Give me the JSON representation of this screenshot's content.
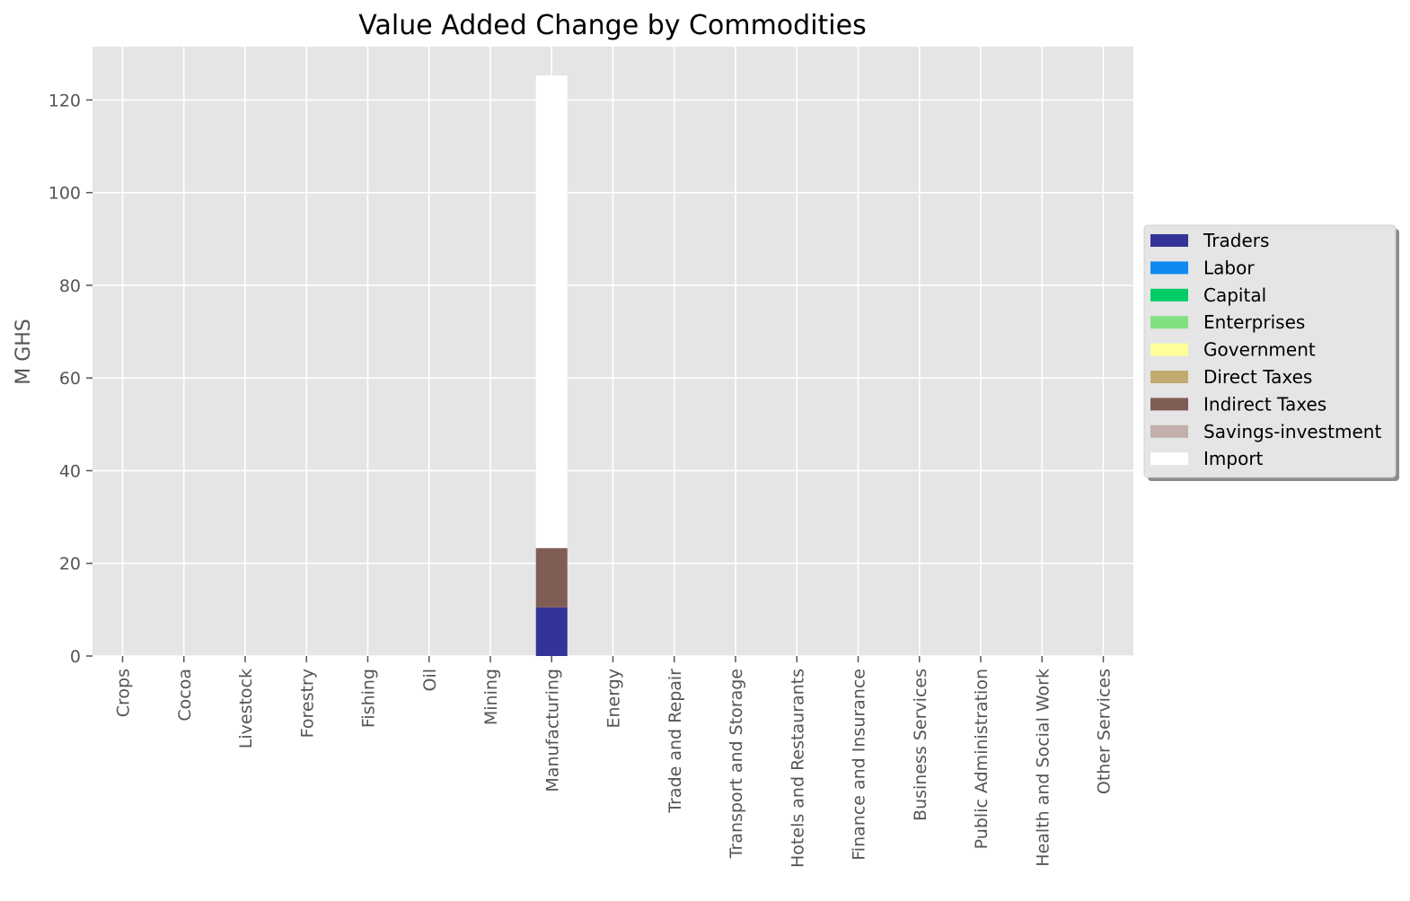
{
  "chart_data": {
    "type": "bar",
    "stacked": true,
    "title": "Value Added Change by Commodities",
    "xlabel": "",
    "ylabel": "M GHS",
    "ylim": [
      0,
      131.5
    ],
    "yticks": [
      0,
      20,
      40,
      60,
      80,
      100,
      120
    ],
    "grid": true,
    "legend_position": "center-right",
    "categories": [
      "Crops",
      "Cocoa",
      "Livestock",
      "Forestry",
      "Fishing",
      "Oil",
      "Mining",
      "Manufacturing",
      "Energy",
      "Trade and Repair",
      "Transport and Storage",
      "Hotels and Restaurants",
      "Finance and Insurance",
      "Business Services",
      "Public Administration",
      "Health and Social Work",
      "Other Services"
    ],
    "series": [
      {
        "name": "Traders",
        "color": "#333399",
        "values": [
          0,
          0,
          0,
          0,
          0,
          0,
          0,
          10.5,
          0,
          0,
          0,
          0,
          0,
          0,
          0,
          0,
          0
        ]
      },
      {
        "name": "Labor",
        "color": "#0d8bf0",
        "values": [
          0,
          0,
          0,
          0,
          0,
          0,
          0,
          0,
          0,
          0,
          0,
          0,
          0,
          0,
          0,
          0,
          0
        ]
      },
      {
        "name": "Capital",
        "color": "#00cc66",
        "values": [
          0,
          0,
          0,
          0,
          0,
          0,
          0,
          0,
          0,
          0,
          0,
          0,
          0,
          0,
          0,
          0,
          0
        ]
      },
      {
        "name": "Enterprises",
        "color": "#80e180",
        "values": [
          0,
          0,
          0,
          0,
          0,
          0,
          0,
          0,
          0,
          0,
          0,
          0,
          0,
          0,
          0,
          0,
          0
        ]
      },
      {
        "name": "Government",
        "color": "#ffff99",
        "values": [
          0,
          0,
          0,
          0,
          0,
          0,
          0,
          0,
          0,
          0,
          0,
          0,
          0,
          0,
          0,
          0,
          0
        ]
      },
      {
        "name": "Direct Taxes",
        "color": "#c1ab70",
        "values": [
          0,
          0,
          0,
          0,
          0,
          0,
          0,
          0,
          0,
          0,
          0,
          0,
          0,
          0,
          0,
          0,
          0
        ]
      },
      {
        "name": "Indirect Taxes",
        "color": "#805d54",
        "values": [
          0,
          0,
          0,
          0,
          0,
          0,
          0,
          12.8,
          0,
          0,
          0,
          0,
          0,
          0,
          0,
          0,
          0
        ]
      },
      {
        "name": "Savings-investment",
        "color": "#c2aeaa",
        "values": [
          0,
          0,
          0,
          0,
          0,
          0,
          0,
          0,
          0,
          0,
          0,
          0,
          0,
          0,
          0,
          0,
          0
        ]
      },
      {
        "name": "Import",
        "color": "#ffffff",
        "values": [
          0,
          0,
          0,
          0,
          0,
          0,
          0,
          102.0,
          0,
          0,
          0,
          0,
          0,
          0,
          0,
          0,
          0
        ]
      }
    ]
  }
}
